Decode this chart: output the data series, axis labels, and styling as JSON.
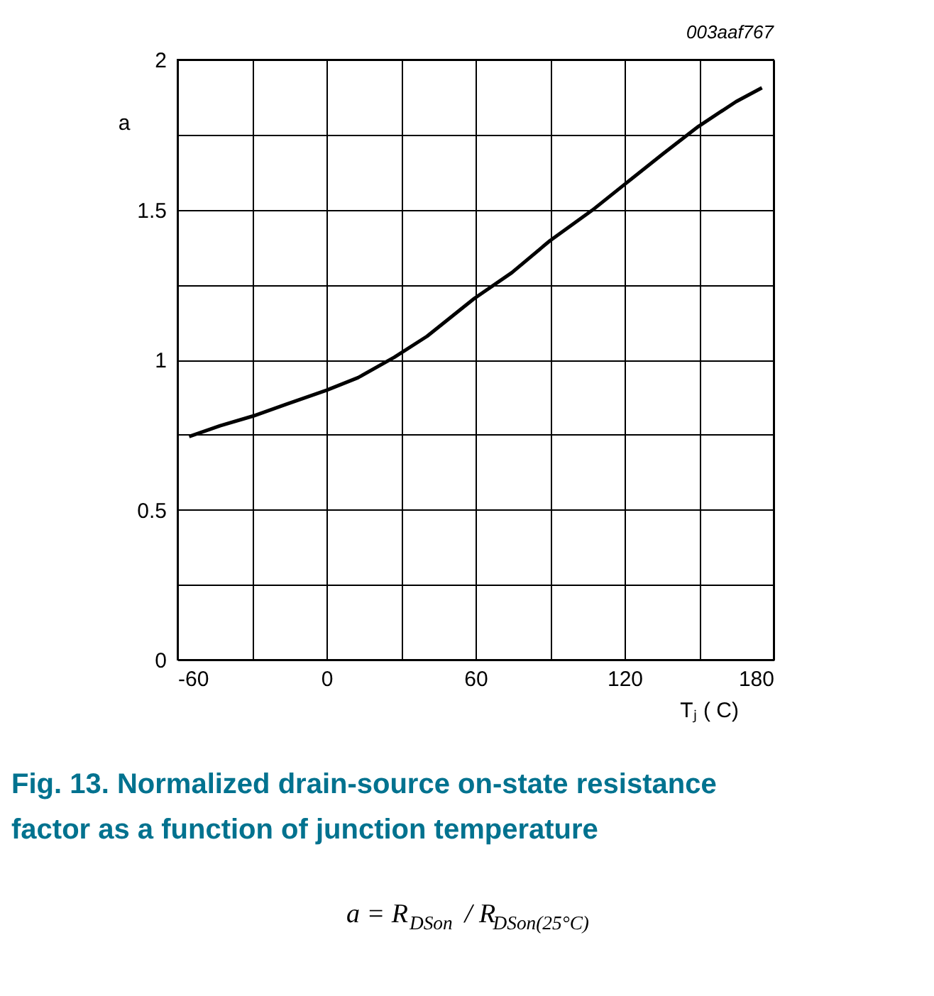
{
  "chart_data": {
    "type": "line",
    "title": "Fig. 13.  Normalized drain-source on-state resistance factor as a function of junction temperature",
    "xlabel": "Tⱼ ( C)",
    "ylabel": "a",
    "annotations": [
      "003aaf767",
      "a = R$_{DSon}$ / R$_{DSon(25°C)}$"
    ],
    "x": [
      -55.3,
      -42.8,
      -29.6,
      -16.4,
      0,
      12.7,
      27.3,
      40.5,
      59.5,
      74.6,
      89.9,
      107,
      120.3,
      135.5,
      149.7,
      164.9,
      175.3
    ],
    "series": [
      {
        "color": "#000000",
        "values": [
          0.744,
          0.78,
          0.812,
          0.851,
          0.898,
          0.94,
          1.008,
          1.078,
          1.204,
          1.29,
          1.396,
          1.498,
          1.586,
          1.686,
          1.777,
          1.86,
          1.906
        ]
      }
    ],
    "xlim": [
      -60,
      180
    ],
    "xticks": [
      -60,
      {
        "value": -30,
        "label": null
      },
      0,
      {
        "value": 30,
        "label": null
      },
      60,
      {
        "value": 90,
        "label": null
      },
      120,
      {
        "value": 150,
        "label": null
      },
      180
    ],
    "ylim": [
      0,
      2
    ],
    "yticks": [
      0,
      {
        "value": 0.25,
        "label": null
      },
      0.5,
      {
        "value": 0.75,
        "label": null
      },
      1,
      {
        "value": 1.25,
        "label": null
      },
      1.5,
      {
        "value": 1.75,
        "label": null
      },
      2
    ],
    "grid": true,
    "marker": "none",
    "line_style": "solid"
  }
}
